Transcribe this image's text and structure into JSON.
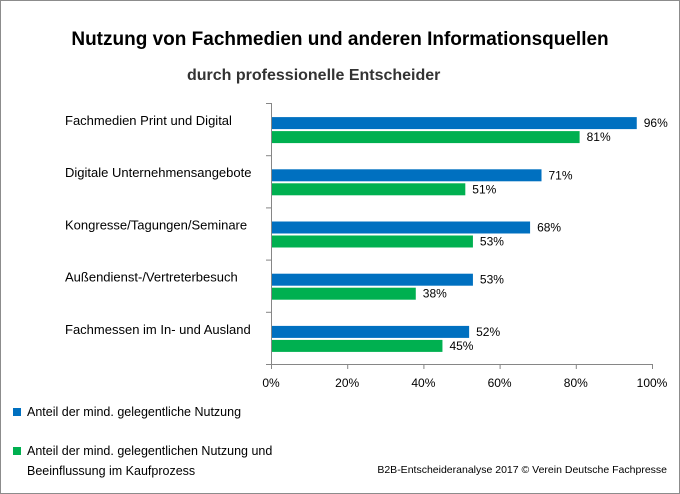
{
  "chart_data": {
    "type": "bar",
    "orientation": "horizontal",
    "title": "Nutzung von Fachmedien und anderen Informationsquellen",
    "subtitle": "durch professionelle Entscheider",
    "categories": [
      "Fachmedien Print und Digital",
      "Digitale Unternehmensangebote",
      "Kongresse/Tagungen/Seminare",
      "Außendienst-/Vertreterbesuch",
      "Fachmessen im In- und Ausland"
    ],
    "series": [
      {
        "name": "Anteil der mind. gelegentliche Nutzung",
        "color": "#0070c0",
        "values": [
          96,
          71,
          68,
          53,
          52
        ],
        "labels": [
          "96%",
          "71%",
          "68%",
          "53%",
          "52%"
        ]
      },
      {
        "name": "Anteil der mind. gelegentlichen Nutzung und Beeinflussung im Kaufprozess",
        "color": "#00b050",
        "values": [
          81,
          51,
          53,
          38,
          45
        ],
        "labels": [
          "81%",
          "51%",
          "53%",
          "38%",
          "45%"
        ]
      }
    ],
    "xlim": [
      0,
      100
    ],
    "xticks": [
      "0%",
      "20%",
      "40%",
      "60%",
      "80%",
      "100%"
    ],
    "xlabel": "",
    "ylabel": "",
    "grid": false,
    "legend_position": "bottom-left"
  },
  "legend": {
    "item1": "Anteil der mind. gelegentliche Nutzung",
    "item2_line1": "Anteil der mind. gelegentlichen Nutzung und",
    "item2_line2": "Beeinflussung im Kaufprozess"
  },
  "source": "B2B-Entscheideranalyse 2017 © Verein Deutsche Fachpresse"
}
